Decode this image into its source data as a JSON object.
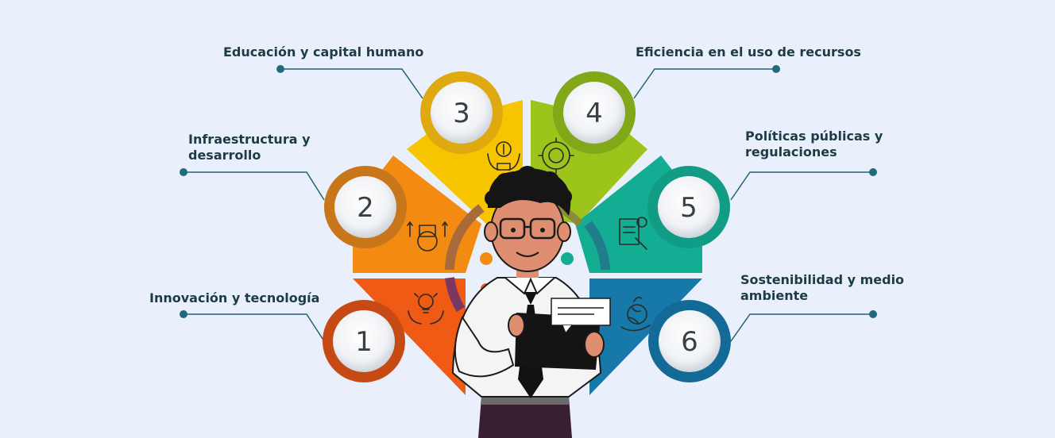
{
  "diagram": {
    "items": [
      {
        "number": "1",
        "label": "Innovación y tecnología",
        "icon": "innovation-bulb-hands-icon",
        "color": "#ef5a14",
        "ring": "#c64a14"
      },
      {
        "number": "2",
        "label": "Infraestructura y\ndesarrollo",
        "icon": "infrastructure-factory-gear-icon",
        "color": "#f38b12",
        "ring": "#c8761a"
      },
      {
        "number": "3",
        "label": "Educación y capital humano",
        "icon": "money-hands-icon",
        "color": "#f6c500",
        "ring": "#dfa910"
      },
      {
        "number": "4",
        "label": "Eficiencia en el uso de recursos",
        "icon": "efficiency-gear-globe-icon",
        "color": "#9cc41b",
        "ring": "#80a818"
      },
      {
        "number": "5",
        "label": "Políticas públicas y\nregulaciones",
        "icon": "policy-document-gavel-icon",
        "color": "#13ad94",
        "ring": "#119c86"
      },
      {
        "number": "6",
        "label": "Sostenibilidad y medio\nambiente",
        "icon": "sustainability-earth-hand-icon",
        "color": "#1779a9",
        "ring": "#146a96"
      }
    ],
    "colors": {
      "background": "#eaf0fb",
      "connector": "#1f6272",
      "dot": "#1f6b7c"
    }
  }
}
